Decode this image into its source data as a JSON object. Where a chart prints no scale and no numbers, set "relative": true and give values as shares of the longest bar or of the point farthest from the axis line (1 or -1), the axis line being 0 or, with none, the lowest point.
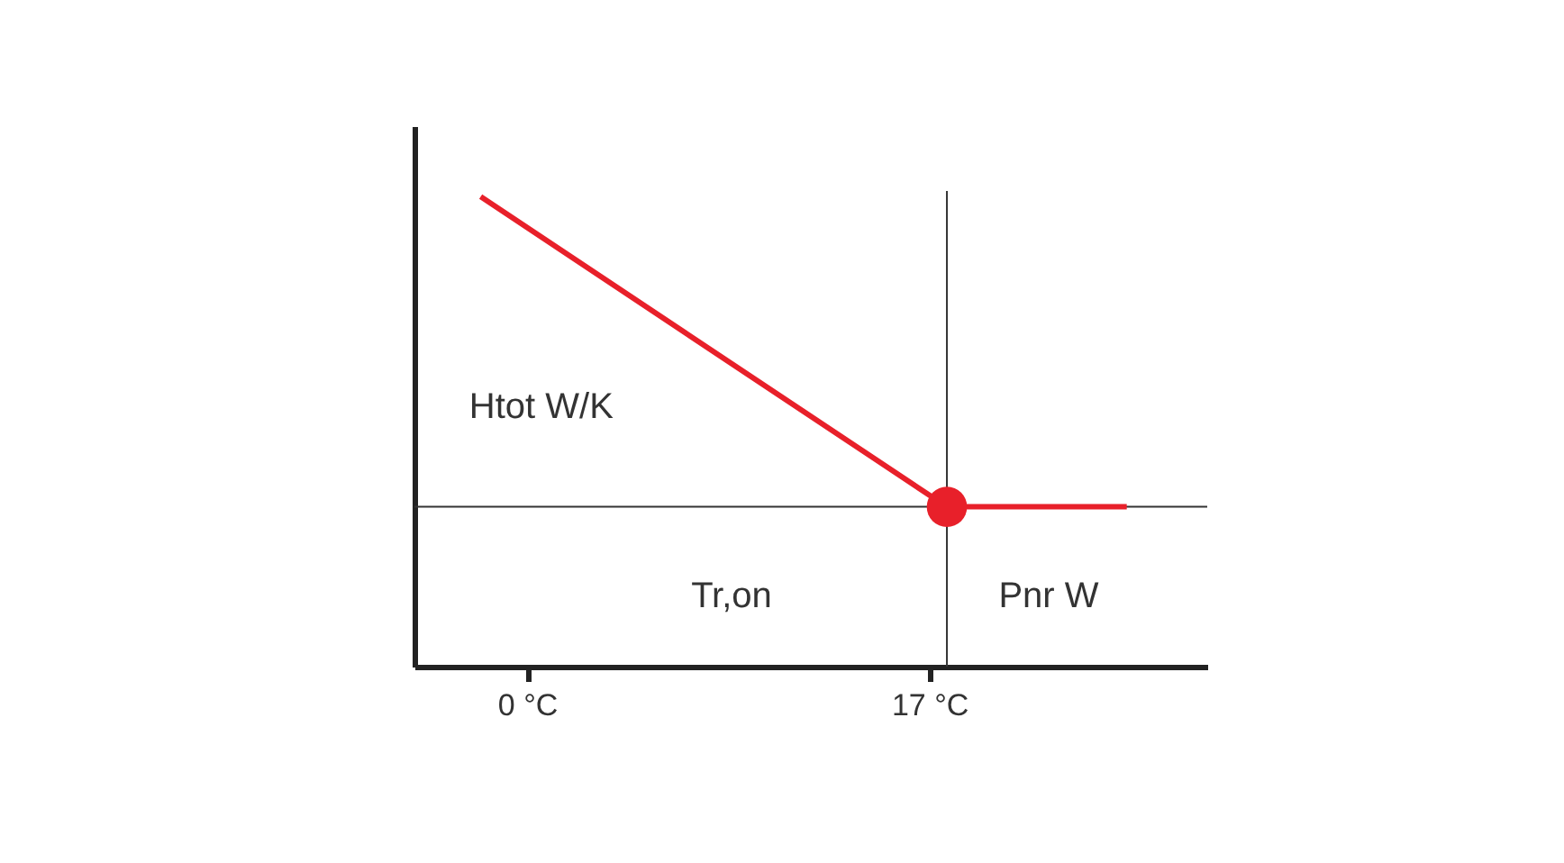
{
  "chart_data": {
    "type": "line",
    "relative": true,
    "xlim": [
      -4.8,
      28.7
    ],
    "xticks": [
      {
        "value": 0,
        "label": "0 °C"
      },
      {
        "value": 17,
        "label": "17 °C"
      }
    ],
    "series": [
      {
        "color": "#e8202a",
        "x": [
          -2.0,
          17.7,
          25.3
        ],
        "values": [
          1,
          0.34,
          0.34
        ]
      },
      {
        "type": "scatter",
        "color": "#e8202a",
        "marker": "circle",
        "x": [
          17.7
        ],
        "values": [
          0.34
        ]
      }
    ],
    "ref_lines": [
      {
        "axis": "x",
        "value": 17.7,
        "color": "#333333"
      },
      {
        "axis": "y",
        "value": 0.34,
        "color": "#333333"
      }
    ],
    "annotations": [
      "Htot W/K",
      "Tr,on",
      "Pnr W"
    ],
    "marker": "none",
    "line_style": "solid"
  }
}
